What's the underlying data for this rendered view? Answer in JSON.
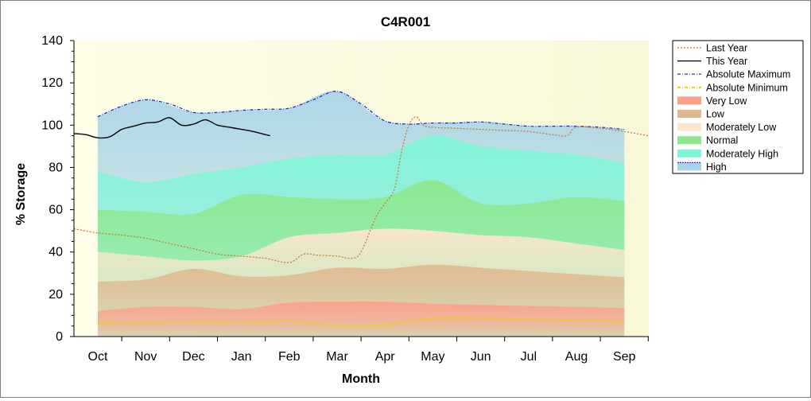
{
  "chart_data": {
    "type": "area",
    "title": "C4R001",
    "xlabel": "Month",
    "ylabel": "% Storage",
    "ylim": [
      0,
      140
    ],
    "yticks": [
      0,
      20,
      40,
      60,
      80,
      100,
      120,
      140
    ],
    "grid": false,
    "legend_position": "right",
    "x_months": [
      "Oct",
      "Nov",
      "Dec",
      "Jan",
      "Feb",
      "Mar",
      "Apr",
      "May",
      "Jun",
      "Jul",
      "Aug",
      "Sep"
    ],
    "bands": [
      {
        "name": "Very Low",
        "color": "#ff9f8a",
        "upper": [
          [
            0,
            12
          ],
          [
            1,
            14
          ],
          [
            2,
            14
          ],
          [
            3,
            13
          ],
          [
            4,
            16
          ],
          [
            5,
            16.5
          ],
          [
            6,
            16.5
          ],
          [
            7,
            15.5
          ],
          [
            8,
            15
          ],
          [
            9,
            14.5
          ],
          [
            10,
            14
          ],
          [
            11,
            13.5
          ]
        ]
      },
      {
        "name": "Low",
        "color": "#e0b890",
        "upper": [
          [
            0,
            26
          ],
          [
            1,
            27
          ],
          [
            2,
            32
          ],
          [
            3,
            28.5
          ],
          [
            4,
            29
          ],
          [
            5,
            32.5
          ],
          [
            6,
            32
          ],
          [
            7,
            34
          ],
          [
            8,
            32.5
          ],
          [
            9,
            31
          ],
          [
            10,
            29.5
          ],
          [
            11,
            28
          ]
        ]
      },
      {
        "name": "Moderately Low",
        "color": "#fde6cf",
        "upper": [
          [
            0,
            40
          ],
          [
            1,
            38
          ],
          [
            2,
            36
          ],
          [
            3,
            38
          ],
          [
            4,
            47
          ],
          [
            5,
            49
          ],
          [
            6,
            51
          ],
          [
            7,
            50
          ],
          [
            8,
            48
          ],
          [
            9,
            47
          ],
          [
            10,
            44
          ],
          [
            11,
            41
          ]
        ]
      },
      {
        "name": "Normal",
        "color": "#8ee88e",
        "upper": [
          [
            0,
            60
          ],
          [
            1,
            59
          ],
          [
            2,
            58
          ],
          [
            3,
            67
          ],
          [
            4,
            66
          ],
          [
            5,
            65
          ],
          [
            6,
            66
          ],
          [
            7,
            74
          ],
          [
            8,
            63
          ],
          [
            9,
            63
          ],
          [
            10,
            66
          ],
          [
            11,
            64
          ]
        ]
      },
      {
        "name": "Moderately High",
        "color": "#7ff5d8",
        "upper": [
          [
            0,
            78
          ],
          [
            1,
            73
          ],
          [
            2,
            77
          ],
          [
            3,
            80
          ],
          [
            4,
            84
          ],
          [
            5,
            86
          ],
          [
            6,
            86
          ],
          [
            7,
            95
          ],
          [
            8,
            90
          ],
          [
            9,
            88
          ],
          [
            10,
            86
          ],
          [
            11,
            82
          ]
        ]
      },
      {
        "name": "High",
        "color": "#a8d4e6",
        "upper": [
          [
            0,
            104
          ],
          [
            1,
            112
          ],
          [
            2,
            106
          ],
          [
            3,
            107
          ],
          [
            4,
            108
          ],
          [
            5,
            116
          ],
          [
            6,
            102
          ],
          [
            7,
            101
          ],
          [
            8,
            101.5
          ],
          [
            9,
            99.5
          ],
          [
            10,
            99.5
          ],
          [
            11,
            98
          ]
        ]
      }
    ],
    "series": [
      {
        "name": "Last Year",
        "color": "#c8732a",
        "style": "dotted",
        "points": [
          [
            -0.5,
            51
          ],
          [
            0,
            49
          ],
          [
            0.5,
            48
          ],
          [
            1,
            46.5
          ],
          [
            1.5,
            44
          ],
          [
            2,
            41.5
          ],
          [
            2.5,
            39
          ],
          [
            3,
            38
          ],
          [
            3.5,
            37
          ],
          [
            4,
            35
          ],
          [
            4.3,
            39
          ],
          [
            4.6,
            38.5
          ],
          [
            5,
            38
          ],
          [
            5.3,
            37
          ],
          [
            5.5,
            40
          ],
          [
            5.8,
            56
          ],
          [
            6,
            63
          ],
          [
            6.2,
            70
          ],
          [
            6.35,
            88
          ],
          [
            6.5,
            100
          ],
          [
            6.65,
            104
          ],
          [
            6.8,
            100
          ],
          [
            7,
            99
          ],
          [
            7.5,
            98.5
          ],
          [
            8,
            98
          ],
          [
            8.5,
            97.5
          ],
          [
            9,
            97
          ],
          [
            9.5,
            95.5
          ],
          [
            9.8,
            95
          ],
          [
            10,
            99
          ],
          [
            10.5,
            98.5
          ],
          [
            11,
            97
          ],
          [
            11.5,
            95
          ]
        ]
      },
      {
        "name": "This Year",
        "color": "#000000",
        "style": "solid",
        "points": [
          [
            -0.5,
            96
          ],
          [
            -0.25,
            95.5
          ],
          [
            0,
            94
          ],
          [
            0.25,
            94.5
          ],
          [
            0.5,
            98
          ],
          [
            0.75,
            99.5
          ],
          [
            1,
            101
          ],
          [
            1.25,
            101.5
          ],
          [
            1.5,
            103.5
          ],
          [
            1.75,
            100
          ],
          [
            2,
            100.5
          ],
          [
            2.25,
            102.5
          ],
          [
            2.5,
            100
          ],
          [
            2.75,
            99
          ],
          [
            3,
            98
          ],
          [
            3.25,
            97
          ],
          [
            3.5,
            95.5
          ],
          [
            3.6,
            95
          ]
        ]
      },
      {
        "name": "Absolute Maximum",
        "color": "#1a1ad0",
        "style": "dashdot",
        "points": [
          [
            0,
            104
          ],
          [
            0.5,
            109
          ],
          [
            1,
            112
          ],
          [
            1.5,
            110
          ],
          [
            2,
            106
          ],
          [
            2.5,
            106
          ],
          [
            3,
            107
          ],
          [
            3.5,
            107.5
          ],
          [
            4,
            108
          ],
          [
            4.5,
            112
          ],
          [
            5,
            116
          ],
          [
            5.5,
            110
          ],
          [
            6,
            102
          ],
          [
            6.5,
            100.5
          ],
          [
            7,
            101
          ],
          [
            7.5,
            101
          ],
          [
            8,
            101.5
          ],
          [
            8.5,
            100.5
          ],
          [
            9,
            99.5
          ],
          [
            9.5,
            99.5
          ],
          [
            10,
            99.5
          ],
          [
            10.5,
            99
          ],
          [
            11,
            98
          ]
        ]
      },
      {
        "name": "Absolute Minimum",
        "color": "#e6d300",
        "style": "dashdot",
        "points": [
          [
            0,
            6.5
          ],
          [
            0.5,
            6.2
          ],
          [
            1,
            6.3
          ],
          [
            1.5,
            6.8
          ],
          [
            2,
            7
          ],
          [
            2.5,
            7
          ],
          [
            3,
            6.8
          ],
          [
            3.5,
            7
          ],
          [
            4,
            7.5
          ],
          [
            4.5,
            6
          ],
          [
            5,
            5
          ],
          [
            5.5,
            5
          ],
          [
            6,
            5.5
          ],
          [
            6.5,
            7
          ],
          [
            7,
            8.5
          ],
          [
            7.5,
            8.8
          ],
          [
            8,
            8.5
          ],
          [
            8.5,
            8.3
          ],
          [
            9,
            8
          ],
          [
            9.5,
            7.8
          ],
          [
            10,
            7.5
          ],
          [
            10.5,
            7.5
          ],
          [
            11,
            7
          ]
        ]
      }
    ],
    "legend": [
      "Last Year",
      "This Year",
      "Absolute Maximum",
      "Absolute Minimum",
      "Very Low",
      "Low",
      "Moderately Low",
      "Normal",
      "Moderately High",
      "High"
    ]
  }
}
